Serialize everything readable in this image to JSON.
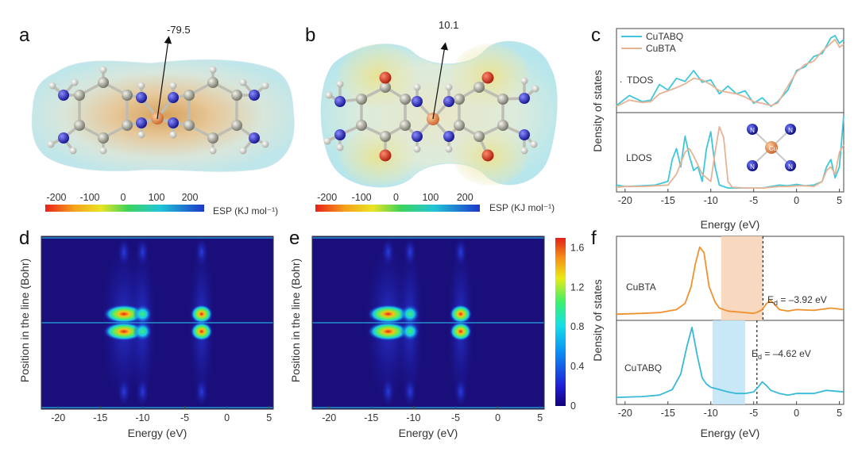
{
  "panels": {
    "a": {
      "letter": "a",
      "esp_value_label": "-79.5",
      "colorbar_ticks": [
        "-200",
        "-100",
        "0",
        "100",
        "200"
      ],
      "colorbar_unit": "ESP (KJ mol⁻¹)"
    },
    "b": {
      "letter": "b",
      "esp_value_label": "10.1",
      "colorbar_ticks": [
        "-200",
        "-100",
        "0",
        "100",
        "200"
      ],
      "colorbar_unit": "ESP (KJ mol⁻¹)"
    },
    "c": {
      "letter": "c",
      "legend": [
        "CuTABQ",
        "CuBTA"
      ],
      "tdos_label": "TDOS",
      "ldos_label": "LDOS",
      "inset_atoms": [
        "N",
        "N",
        "N",
        "N",
        "Cu"
      ],
      "ylabel": "Density of states",
      "xlabel": "Energy (eV)",
      "xticks": [
        "-20",
        "-15",
        "-10",
        "-5",
        "0",
        "5"
      ]
    },
    "d": {
      "letter": "d",
      "ylabel": "Position in the line (Bohr)",
      "xlabel": "Energy (eV)",
      "xticks": [
        "-20",
        "-15",
        "-10",
        "-5",
        "0",
        "5"
      ]
    },
    "e": {
      "letter": "e",
      "ylabel": "Position in the line (Bohr)",
      "xlabel": "Energy (eV)",
      "xticks": [
        "-20",
        "-15",
        "-10",
        "-5",
        "0",
        "5"
      ],
      "colorbar_ticks": [
        "1.6",
        "1.2",
        "0.8",
        "0.4",
        "0"
      ]
    },
    "f": {
      "letter": "f",
      "ylabel": "Density of states",
      "xlabel": "Energy (eV)",
      "xticks": [
        "-20",
        "-15",
        "-10",
        "-5",
        "0",
        "5"
      ],
      "top_label": "CuBTA",
      "bottom_label": "CuTABQ",
      "top_ed_label": "E",
      "top_ed_sub": "d",
      "top_ed_value": " = –3.92 eV",
      "bottom_ed_label": "E",
      "bottom_ed_sub": "d",
      "bottom_ed_value": " = –4.62 eV"
    }
  },
  "colors": {
    "cutabq": "#3ec7dc",
    "cubta_c": "#e6b396",
    "cubta_f": "#f0912f",
    "cutabq_f": "#39b9d8"
  },
  "chart_data": [
    {
      "panel": "c",
      "type": "line",
      "xlabel": "Energy (eV)",
      "ylabel": "Density of states",
      "xlim": [
        -21,
        5.5
      ],
      "subplots": [
        {
          "label": "TDOS",
          "series": [
            {
              "name": "CuTABQ",
              "x": [
                -21,
                -19.5,
                -18,
                -17,
                -16,
                -15,
                -14,
                -13,
                -12,
                -11,
                -10,
                -9,
                -8,
                -7,
                -6,
                -5,
                -4,
                -3,
                -2.2,
                -1,
                0,
                1,
                2,
                3,
                4,
                4.5,
                5,
                5.5
              ],
              "y": [
                0.05,
                0.18,
                0.1,
                0.12,
                0.32,
                0.25,
                0.4,
                0.36,
                0.5,
                0.35,
                0.38,
                0.2,
                0.3,
                0.2,
                0.24,
                0.08,
                0.15,
                0.04,
                0.1,
                0.25,
                0.5,
                0.55,
                0.68,
                0.72,
                0.92,
                0.95,
                0.85,
                0.9
              ]
            },
            {
              "name": "CuBTA",
              "x": [
                -21,
                -19.5,
                -18,
                -17,
                -16,
                -15,
                -14,
                -13,
                -12,
                -11,
                -10,
                -9,
                -8,
                -7,
                -6,
                -5,
                -4,
                -3,
                -2.2,
                -1,
                0,
                1,
                2,
                3,
                4,
                4.5,
                5,
                5.5
              ],
              "y": [
                0.04,
                0.12,
                0.09,
                0.1,
                0.2,
                0.24,
                0.28,
                0.33,
                0.4,
                0.38,
                0.32,
                0.24,
                0.22,
                0.2,
                0.16,
                0.1,
                0.08,
                0.05,
                0.08,
                0.3,
                0.48,
                0.58,
                0.62,
                0.75,
                0.85,
                0.9,
                0.8,
                0.84
              ]
            }
          ]
        },
        {
          "label": "LDOS",
          "series": [
            {
              "name": "CuTABQ",
              "x": [
                -21,
                -20,
                -18,
                -16.5,
                -15,
                -14.5,
                -14,
                -13.5,
                -13,
                -12.5,
                -12,
                -11.5,
                -11,
                -10.5,
                -10,
                -9.5,
                -9,
                -8,
                -6,
                -4,
                -3.5,
                -3,
                -2,
                -1,
                0,
                1,
                2,
                3,
                3.5,
                4,
                4.5,
                5,
                5.5
              ],
              "y": [
                0.05,
                0.03,
                0.04,
                0.05,
                0.1,
                0.4,
                0.55,
                0.3,
                0.72,
                0.45,
                0.25,
                0.3,
                0.1,
                0.55,
                0.78,
                0.3,
                0.05,
                0.01,
                0.01,
                0.01,
                0.02,
                0.03,
                0.05,
                0.04,
                0.06,
                0.04,
                0.05,
                0.1,
                0.3,
                0.4,
                0.15,
                0.3,
                1.0
              ]
            },
            {
              "name": "CuBTA",
              "x": [
                -21,
                -20,
                -18,
                -16.5,
                -15,
                -14,
                -13.5,
                -13,
                -12.5,
                -12,
                -11,
                -10,
                -9.5,
                -9,
                -8.5,
                -8,
                -7.5,
                -6,
                -4,
                -3,
                -2,
                -1,
                0,
                1,
                2,
                3,
                3.5,
                4,
                4.5,
                5,
                5.5
              ],
              "y": [
                0.02,
                0.03,
                0.03,
                0.04,
                0.05,
                0.2,
                0.35,
                0.5,
                0.55,
                0.45,
                0.2,
                0.1,
                0.5,
                0.85,
                0.7,
                0.1,
                0.02,
                0.01,
                0.01,
                0.02,
                0.03,
                0.03,
                0.04,
                0.04,
                0.03,
                0.1,
                0.25,
                0.3,
                0.2,
                0.5,
                0.6
              ]
            }
          ]
        }
      ]
    },
    {
      "panel": "d",
      "type": "heatmap",
      "xlabel": "Energy (eV)",
      "ylabel": "Position in the line (Bohr)",
      "xlim": [
        -22,
        5.5
      ],
      "colorbar_range": [
        0,
        1.7
      ],
      "hotspots_x": [
        -12.2,
        -10.0,
        -3.0
      ],
      "peak_values": [
        1.0,
        0.7,
        1.6
      ]
    },
    {
      "panel": "e",
      "type": "heatmap",
      "xlabel": "Energy (eV)",
      "ylabel": "Position in the line (Bohr)",
      "xlim": [
        -22,
        5.5
      ],
      "colorbar_range": [
        0,
        1.7
      ],
      "hotspots_x": [
        -13.0,
        -10.4,
        -4.4
      ],
      "peak_values": [
        1.1,
        0.8,
        1.6
      ]
    },
    {
      "panel": "f",
      "type": "line",
      "xlabel": "Energy (eV)",
      "ylabel": "Density of states",
      "xlim": [
        -21,
        5.5
      ],
      "subplots": [
        {
          "label": "CuBTA",
          "d_band_center": -3.92,
          "shaded_range": [
            -8.8,
            -3.92
          ],
          "series": [
            {
              "name": "CuBTA",
              "x": [
                -21,
                -18,
                -16,
                -14,
                -13,
                -12.3,
                -11.8,
                -11.3,
                -10.8,
                -10.2,
                -9.5,
                -9,
                -8,
                -6,
                -5,
                -4.5,
                -4,
                -3.5,
                -3,
                -2.5,
                -2,
                -1,
                0,
                2,
                4,
                5.5
              ],
              "y": [
                0.04,
                0.05,
                0.06,
                0.1,
                0.18,
                0.4,
                0.7,
                0.92,
                0.85,
                0.4,
                0.2,
                0.12,
                0.08,
                0.06,
                0.05,
                0.07,
                0.1,
                0.18,
                0.22,
                0.16,
                0.1,
                0.08,
                0.1,
                0.09,
                0.12,
                0.1
              ]
            }
          ]
        },
        {
          "label": "CuTABQ",
          "d_band_center": -4.62,
          "shaded_range": [
            -9.8,
            -6.0
          ],
          "series": [
            {
              "name": "CuTABQ",
              "x": [
                -21,
                -18,
                -16,
                -14.5,
                -13.5,
                -12.8,
                -12.2,
                -11.6,
                -11,
                -10.5,
                -10,
                -9,
                -8,
                -7,
                -6,
                -5,
                -4.5,
                -4,
                -3.5,
                -3,
                -2,
                -1,
                0,
                2,
                3.5,
                5.5
              ],
              "y": [
                0.05,
                0.06,
                0.08,
                0.15,
                0.35,
                0.7,
                0.95,
                0.6,
                0.3,
                0.22,
                0.18,
                0.15,
                0.12,
                0.1,
                0.1,
                0.12,
                0.18,
                0.25,
                0.2,
                0.14,
                0.1,
                0.08,
                0.1,
                0.1,
                0.14,
                0.12
              ]
            }
          ]
        }
      ]
    }
  ]
}
